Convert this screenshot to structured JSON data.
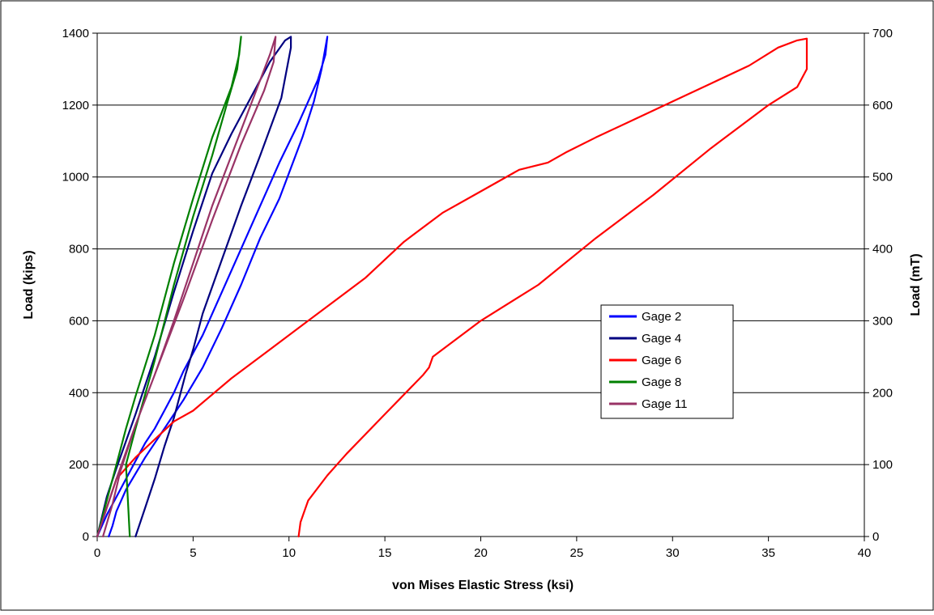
{
  "chart_data": {
    "type": "line",
    "xlabel": "von Mises Elastic Stress (ksi)",
    "ylabel": "Load (kips)",
    "y2label": "Load (mT)",
    "xlim": [
      0,
      40
    ],
    "ylim": [
      0,
      1400
    ],
    "y2lim": [
      0,
      700
    ],
    "x_ticks": [
      "0",
      "5",
      "10",
      "15",
      "20",
      "25",
      "30",
      "35",
      "40"
    ],
    "y_ticks": [
      "0",
      "200",
      "400",
      "600",
      "800",
      "1000",
      "1200",
      "1400"
    ],
    "y2_ticks": [
      "0",
      "100",
      "200",
      "300",
      "400",
      "500",
      "600",
      "700"
    ],
    "grid": "horizontal",
    "legend_position": "right-center",
    "series": [
      {
        "name": "Gage 2",
        "color": "#0000ff",
        "x": [
          0.0,
          0.5,
          1.0,
          1.5,
          2.0,
          2.5,
          3.0,
          3.5,
          4.0,
          4.5,
          5.5,
          6.5,
          7.5,
          8.5,
          9.5,
          10.5,
          11.5,
          11.9,
          12.0,
          11.7,
          11.3,
          10.7,
          9.5,
          8.5,
          7.5,
          6.5,
          5.5,
          4.5,
          3.5,
          2.5,
          1.5,
          1.0,
          0.8,
          0.6
        ],
        "y": [
          0,
          60,
          110,
          160,
          210,
          260,
          300,
          350,
          400,
          460,
          560,
          680,
          800,
          920,
          1040,
          1150,
          1270,
          1340,
          1390,
          1300,
          1210,
          1110,
          940,
          830,
          700,
          580,
          470,
          380,
          300,
          220,
          130,
          70,
          30,
          0
        ]
      },
      {
        "name": "Gage 4",
        "color": "#000080",
        "x": [
          0.0,
          0.5,
          1.0,
          2.0,
          3.0,
          4.0,
          5.0,
          6.0,
          7.0,
          8.0,
          9.0,
          9.8,
          10.1,
          10.1,
          9.6,
          8.5,
          7.5,
          6.5,
          5.5,
          5.0,
          4.6,
          4.0,
          3.5,
          3.0,
          2.5,
          2.0
        ],
        "y": [
          0,
          110,
          190,
          340,
          500,
          680,
          850,
          1010,
          1120,
          1220,
          1320,
          1380,
          1390,
          1360,
          1220,
          1060,
          920,
          770,
          620,
          520,
          450,
          330,
          250,
          160,
          80,
          0
        ]
      },
      {
        "name": "Gage 6",
        "color": "#ff0000",
        "x": [
          0.0,
          1.0,
          2.0,
          3.0,
          4.0,
          5.0,
          7.0,
          9.0,
          11.0,
          13.0,
          14.0,
          16.0,
          18.0,
          20.0,
          22.0,
          23.5,
          24.5,
          26.0,
          28.0,
          30.0,
          32.0,
          34.0,
          35.5,
          36.5,
          37.0,
          37.0,
          36.5,
          35.0,
          32.0,
          29.0,
          26.0,
          23.0,
          20.0,
          17.5,
          17.3,
          17.0,
          15.0,
          13.0,
          12.0,
          11.0,
          10.6,
          10.5
        ],
        "y": [
          0,
          160,
          220,
          270,
          320,
          350,
          440,
          520,
          600,
          680,
          720,
          820,
          900,
          960,
          1020,
          1040,
          1070,
          1110,
          1160,
          1210,
          1260,
          1310,
          1360,
          1380,
          1385,
          1300,
          1250,
          1200,
          1080,
          950,
          830,
          700,
          600,
          500,
          470,
          450,
          340,
          230,
          170,
          100,
          40,
          0
        ]
      },
      {
        "name": "Gage 8",
        "color": "#008000",
        "x": [
          0.0,
          0.5,
          1.0,
          1.5,
          2.0,
          3.0,
          4.0,
          5.0,
          6.0,
          7.0,
          7.4,
          7.5,
          7.3,
          6.8,
          6.0,
          5.0,
          4.0,
          3.0,
          2.0,
          1.5,
          1.6,
          1.7
        ],
        "y": [
          0,
          100,
          200,
          300,
          390,
          560,
          760,
          940,
          1110,
          1250,
          1340,
          1390,
          1300,
          1210,
          1060,
          890,
          700,
          490,
          300,
          200,
          100,
          0
        ]
      },
      {
        "name": "Gage 11",
        "color": "#993366",
        "x": [
          0.0,
          0.5,
          1.0,
          2.0,
          3.0,
          4.0,
          5.0,
          6.0,
          7.0,
          8.0,
          9.0,
          9.3,
          9.2,
          8.7,
          7.5,
          6.0,
          4.5,
          3.0,
          2.0,
          1.2,
          0.8,
          0.3
        ],
        "y": [
          0,
          80,
          160,
          310,
          450,
          600,
          760,
          920,
          1060,
          1200,
          1340,
          1390,
          1320,
          1240,
          1090,
          880,
          660,
          450,
          310,
          180,
          90,
          0
        ]
      }
    ]
  }
}
